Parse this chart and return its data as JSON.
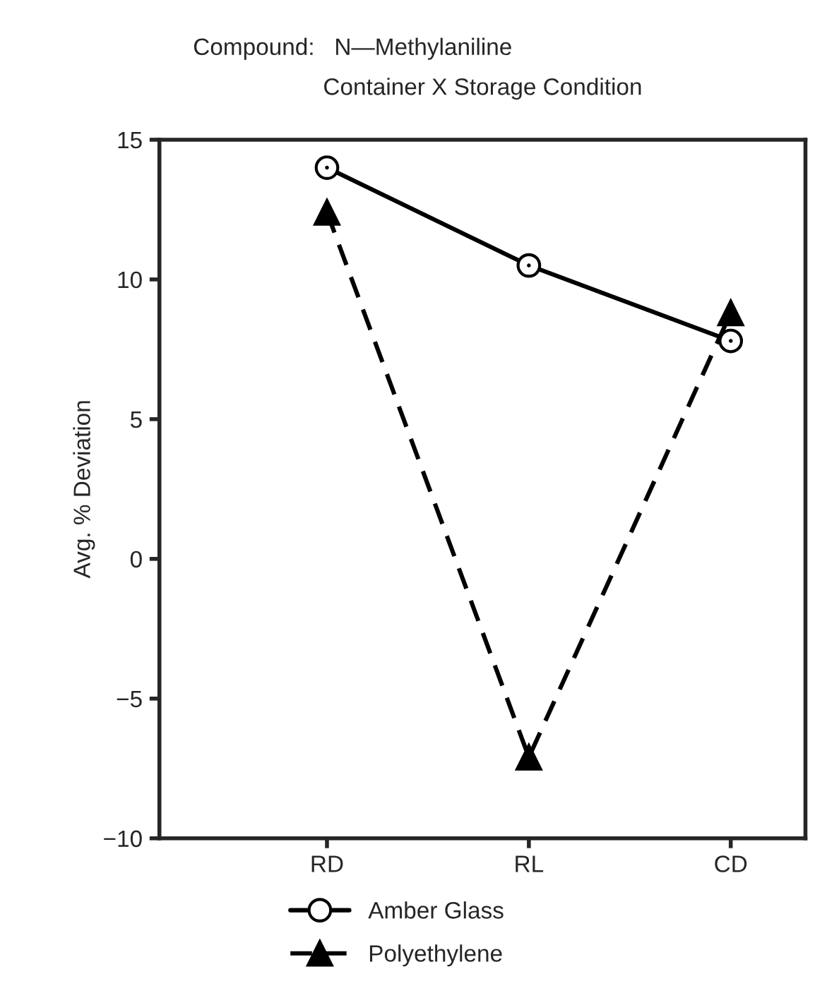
{
  "chart_data": {
    "type": "line",
    "title": "Compound:   N—Methylaniline",
    "subtitle": "Container X Storage Condition",
    "ylabel": "Avg. % Deviation",
    "categories": [
      "RD",
      "RL",
      "CD"
    ],
    "series": [
      {
        "name": "Amber Glass",
        "color": "#000000",
        "values": [
          14.0,
          10.5,
          7.8
        ],
        "marker": "circle",
        "line_style": "solid"
      },
      {
        "name": "Polyethylene",
        "color": "#000000",
        "values": [
          12.4,
          -7.1,
          8.8
        ],
        "marker": "triangle",
        "line_style": "dashed"
      }
    ],
    "ylim": [
      -10,
      15
    ],
    "yticks": [
      {
        "value": -10,
        "label": "−10"
      },
      {
        "value": -5,
        "label": "−5"
      },
      0,
      5,
      10,
      15
    ],
    "grid": false,
    "legend": "bottom"
  }
}
